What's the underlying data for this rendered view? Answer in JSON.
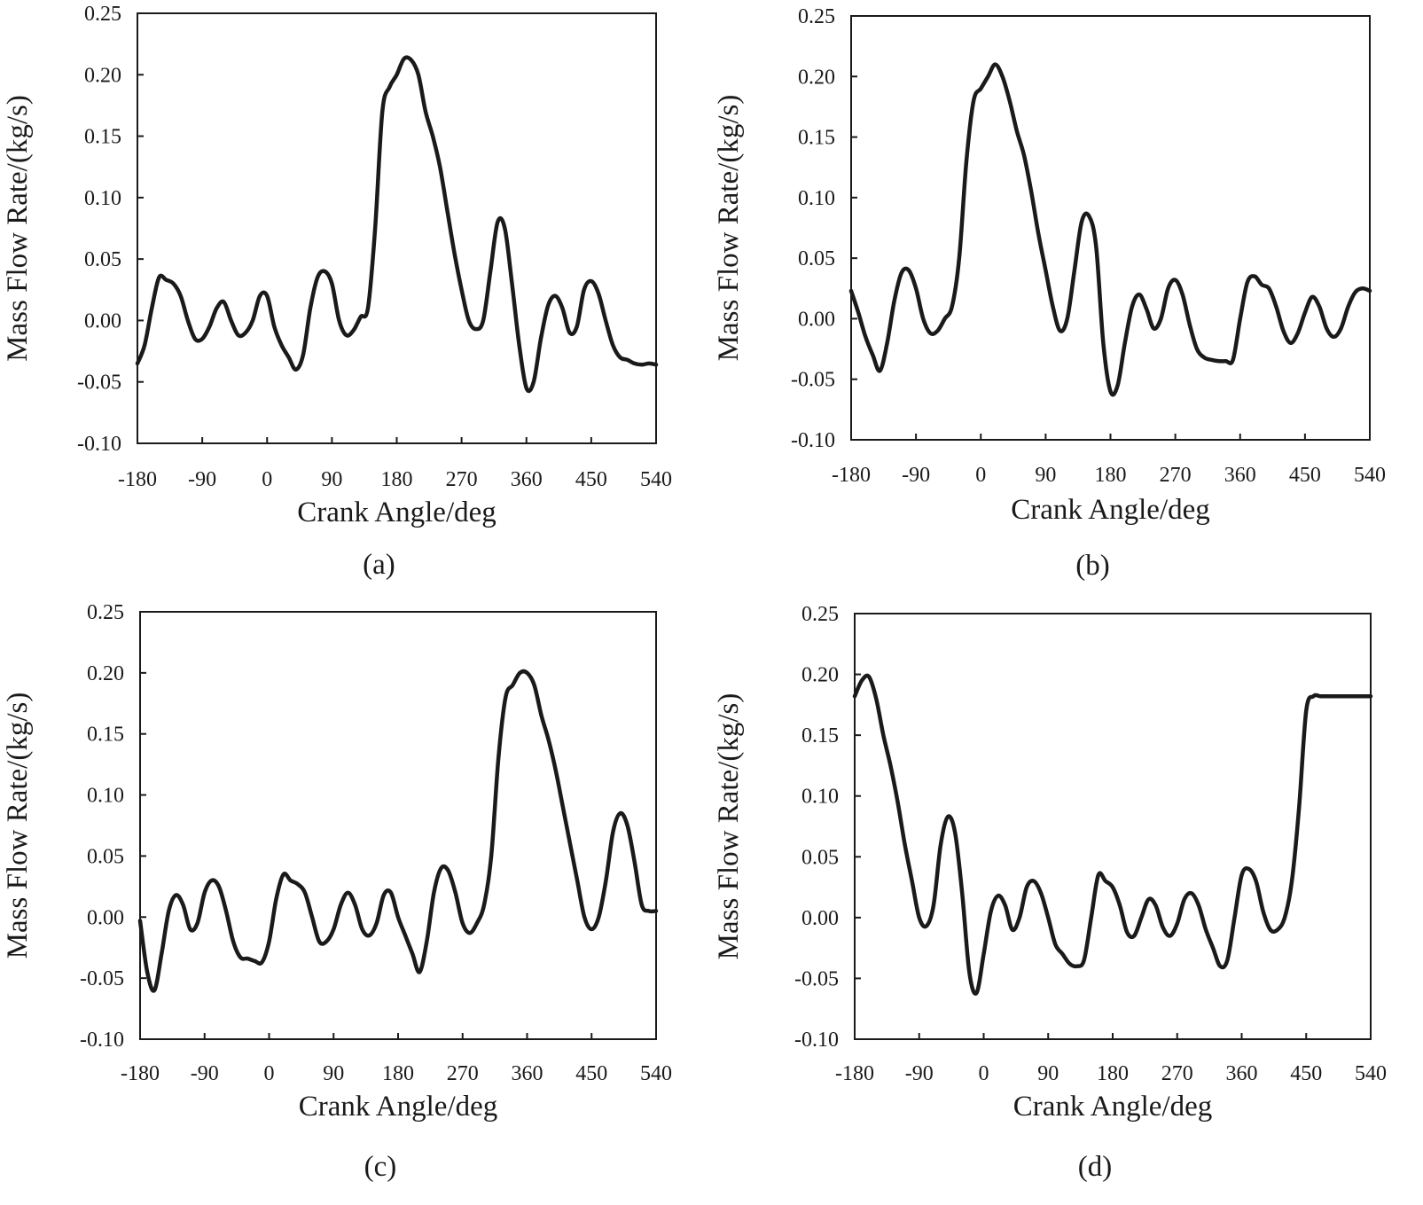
{
  "figure": {
    "background": "#ffffff",
    "line_color": "#1a1a1a"
  },
  "chart_data": [
    {
      "panel": "a",
      "type": "line",
      "caption": "(a)",
      "xlabel": "Crank Angle/deg",
      "ylabel": "Mass Flow Rate/(kg/s)",
      "xlim": [
        -180,
        540
      ],
      "ylim": [
        -0.1,
        0.25
      ],
      "xticks": [
        -180,
        -90,
        0,
        90,
        180,
        270,
        360,
        450,
        540
      ],
      "xtick_labels": [
        "-180",
        "-90",
        "0",
        "90",
        "180",
        "270",
        "360",
        "450",
        "540"
      ],
      "yticks": [
        -0.1,
        -0.05,
        0.0,
        0.05,
        0.1,
        0.15,
        0.2,
        0.25
      ],
      "ytick_labels": [
        "-0.10",
        "-0.05",
        "0.00",
        "0.05",
        "0.10",
        "0.15",
        "0.20",
        "0.25"
      ],
      "grid": false,
      "series": [
        {
          "name": "mass flow rate",
          "x": [
            -180,
            -170,
            -160,
            -150,
            -140,
            -130,
            -120,
            -110,
            -100,
            -90,
            -80,
            -70,
            -60,
            -50,
            -40,
            -30,
            -20,
            -10,
            0,
            10,
            20,
            30,
            40,
            50,
            60,
            70,
            80,
            90,
            100,
            110,
            120,
            130,
            140,
            150,
            160,
            170,
            180,
            190,
            200,
            210,
            220,
            230,
            240,
            250,
            260,
            270,
            280,
            290,
            300,
            310,
            320,
            330,
            340,
            350,
            360,
            370,
            380,
            390,
            400,
            410,
            420,
            430,
            440,
            450,
            460,
            470,
            480,
            490,
            500,
            510,
            520,
            530,
            540
          ],
          "y": [
            -0.035,
            -0.02,
            0.01,
            0.035,
            0.033,
            0.03,
            0.02,
            0.0,
            -0.015,
            -0.015,
            -0.005,
            0.01,
            0.015,
            0.0,
            -0.012,
            -0.01,
            0.0,
            0.02,
            0.02,
            -0.005,
            -0.02,
            -0.03,
            -0.04,
            -0.028,
            0.01,
            0.035,
            0.04,
            0.03,
            0.0,
            -0.012,
            -0.008,
            0.003,
            0.01,
            0.075,
            0.17,
            0.19,
            0.2,
            0.213,
            0.212,
            0.2,
            0.17,
            0.15,
            0.125,
            0.09,
            0.055,
            0.025,
            0.0,
            -0.007,
            0.0,
            0.04,
            0.08,
            0.075,
            0.03,
            -0.02,
            -0.055,
            -0.05,
            -0.015,
            0.012,
            0.02,
            0.01,
            -0.01,
            -0.005,
            0.025,
            0.032,
            0.022,
            0.0,
            -0.02,
            -0.03,
            -0.032,
            -0.035,
            -0.036,
            -0.035,
            -0.036
          ]
        }
      ]
    },
    {
      "panel": "b",
      "type": "line",
      "caption": "(b)",
      "xlabel": "Crank Angle/deg",
      "ylabel": "Mass Flow Rate/(kg/s)",
      "xlim": [
        -180,
        540
      ],
      "ylim": [
        -0.1,
        0.25
      ],
      "xticks": [
        -180,
        -90,
        0,
        90,
        180,
        270,
        360,
        450,
        540
      ],
      "xtick_labels": [
        "-180",
        "-90",
        "0",
        "90",
        "180",
        "270",
        "360",
        "450",
        "540"
      ],
      "yticks": [
        -0.1,
        -0.05,
        0.0,
        0.05,
        0.1,
        0.15,
        0.2,
        0.25
      ],
      "ytick_labels": [
        "-0.10",
        "-0.05",
        "0.00",
        "0.05",
        "0.10",
        "0.15",
        "0.20",
        "0.25"
      ],
      "grid": false,
      "series": [
        {
          "name": "mass flow rate",
          "x": [
            -180,
            -170,
            -160,
            -150,
            -140,
            -130,
            -120,
            -110,
            -100,
            -90,
            -80,
            -70,
            -60,
            -50,
            -40,
            -30,
            -20,
            -10,
            0,
            10,
            20,
            30,
            40,
            50,
            60,
            70,
            80,
            90,
            100,
            110,
            120,
            130,
            140,
            150,
            160,
            170,
            180,
            190,
            200,
            210,
            220,
            230,
            240,
            250,
            260,
            270,
            280,
            290,
            300,
            310,
            320,
            330,
            340,
            350,
            360,
            370,
            380,
            390,
            400,
            410,
            420,
            430,
            440,
            450,
            460,
            470,
            480,
            490,
            500,
            510,
            520,
            530,
            540
          ],
          "y": [
            0.023,
            0.005,
            -0.015,
            -0.03,
            -0.043,
            -0.02,
            0.015,
            0.038,
            0.04,
            0.025,
            0.0,
            -0.012,
            -0.01,
            0.0,
            0.01,
            0.05,
            0.13,
            0.18,
            0.19,
            0.2,
            0.21,
            0.2,
            0.18,
            0.155,
            0.135,
            0.105,
            0.07,
            0.04,
            0.01,
            -0.01,
            0.0,
            0.04,
            0.08,
            0.085,
            0.06,
            -0.02,
            -0.06,
            -0.055,
            -0.02,
            0.01,
            0.02,
            0.008,
            -0.008,
            0.0,
            0.025,
            0.032,
            0.02,
            -0.005,
            -0.025,
            -0.032,
            -0.034,
            -0.035,
            -0.035,
            -0.034,
            0.0,
            0.03,
            0.035,
            0.028,
            0.025,
            0.01,
            -0.01,
            -0.02,
            -0.012,
            0.005,
            0.018,
            0.01,
            -0.008,
            -0.015,
            -0.008,
            0.01,
            0.022,
            0.025,
            0.023
          ]
        }
      ]
    },
    {
      "panel": "c",
      "type": "line",
      "caption": "(c)",
      "xlabel": "Crank Angle/deg",
      "ylabel": "Mass Flow Rate/(kg/s)",
      "xlim": [
        -180,
        540
      ],
      "ylim": [
        -0.1,
        0.25
      ],
      "xticks": [
        -180,
        -90,
        0,
        90,
        180,
        270,
        360,
        450,
        540
      ],
      "xtick_labels": [
        "-180",
        "-90",
        "0",
        "90",
        "180",
        "270",
        "360",
        "450",
        "540"
      ],
      "yticks": [
        -0.1,
        -0.05,
        0.0,
        0.05,
        0.1,
        0.15,
        0.2,
        0.25
      ],
      "ytick_labels": [
        "-0.10",
        "-0.05",
        "0.00",
        "0.05",
        "0.10",
        "0.15",
        "0.20",
        "0.25"
      ],
      "grid": false,
      "series": [
        {
          "name": "mass flow rate",
          "x": [
            -180,
            -170,
            -160,
            -150,
            -140,
            -130,
            -120,
            -110,
            -100,
            -90,
            -80,
            -70,
            -60,
            -50,
            -40,
            -30,
            -20,
            -10,
            0,
            10,
            20,
            30,
            40,
            50,
            60,
            70,
            80,
            90,
            100,
            110,
            120,
            130,
            140,
            150,
            160,
            170,
            180,
            190,
            200,
            210,
            220,
            230,
            240,
            250,
            260,
            270,
            280,
            290,
            300,
            310,
            320,
            330,
            340,
            350,
            360,
            370,
            380,
            390,
            400,
            410,
            420,
            430,
            440,
            450,
            460,
            470,
            480,
            490,
            500,
            510,
            520,
            530,
            540
          ],
          "y": [
            -0.003,
            -0.045,
            -0.06,
            -0.03,
            0.005,
            0.018,
            0.01,
            -0.01,
            -0.005,
            0.02,
            0.03,
            0.025,
            0.005,
            -0.02,
            -0.033,
            -0.034,
            -0.036,
            -0.037,
            -0.02,
            0.015,
            0.035,
            0.03,
            0.027,
            0.02,
            0.0,
            -0.02,
            -0.02,
            -0.01,
            0.01,
            0.02,
            0.01,
            -0.01,
            -0.015,
            -0.005,
            0.018,
            0.02,
            0.0,
            -0.015,
            -0.03,
            -0.045,
            -0.02,
            0.02,
            0.04,
            0.038,
            0.02,
            -0.005,
            -0.013,
            -0.005,
            0.01,
            0.05,
            0.13,
            0.18,
            0.19,
            0.2,
            0.2,
            0.19,
            0.165,
            0.145,
            0.12,
            0.09,
            0.06,
            0.03,
            0.0,
            -0.01,
            0.0,
            0.03,
            0.07,
            0.085,
            0.075,
            0.045,
            0.01,
            0.005,
            0.005
          ]
        }
      ]
    },
    {
      "panel": "d",
      "type": "line",
      "caption": "(d)",
      "xlabel": "Crank Angle/deg",
      "ylabel": "Mass Flow Rate/(kg/s)",
      "xlim": [
        -180,
        540
      ],
      "ylim": [
        -0.1,
        0.25
      ],
      "xticks": [
        -180,
        -90,
        0,
        90,
        180,
        270,
        360,
        450,
        540
      ],
      "xtick_labels": [
        "-180",
        "-90",
        "0",
        "90",
        "180",
        "270",
        "360",
        "450",
        "540"
      ],
      "yticks": [
        -0.1,
        -0.05,
        0.0,
        0.05,
        0.1,
        0.15,
        0.2,
        0.25
      ],
      "ytick_labels": [
        "-0.10",
        "-0.05",
        "0.00",
        "0.05",
        "0.10",
        "0.15",
        "0.20",
        "0.25"
      ],
      "grid": false,
      "series": [
        {
          "name": "mass flow rate",
          "x": [
            -180,
            -170,
            -160,
            -150,
            -140,
            -130,
            -120,
            -110,
            -100,
            -90,
            -80,
            -70,
            -60,
            -50,
            -40,
            -30,
            -20,
            -10,
            0,
            10,
            20,
            30,
            40,
            50,
            60,
            70,
            80,
            90,
            100,
            110,
            120,
            130,
            140,
            150,
            160,
            170,
            180,
            190,
            200,
            210,
            220,
            230,
            240,
            250,
            260,
            270,
            280,
            290,
            300,
            310,
            320,
            330,
            340,
            350,
            360,
            370,
            380,
            390,
            400,
            410,
            420,
            430,
            440,
            450,
            460,
            470,
            480,
            490,
            500,
            510,
            520,
            530,
            540
          ],
          "y": [
            0.182,
            0.195,
            0.198,
            0.18,
            0.15,
            0.125,
            0.095,
            0.06,
            0.03,
            0.0,
            -0.007,
            0.01,
            0.06,
            0.083,
            0.07,
            0.02,
            -0.045,
            -0.062,
            -0.03,
            0.005,
            0.018,
            0.01,
            -0.01,
            0.0,
            0.025,
            0.03,
            0.02,
            0.0,
            -0.022,
            -0.03,
            -0.038,
            -0.04,
            -0.035,
            0.0,
            0.035,
            0.03,
            0.025,
            0.01,
            -0.012,
            -0.015,
            0.0,
            0.015,
            0.01,
            -0.008,
            -0.015,
            -0.005,
            0.015,
            0.02,
            0.01,
            -0.01,
            -0.025,
            -0.04,
            -0.035,
            0.0,
            0.035,
            0.04,
            0.03,
            0.005,
            -0.01,
            -0.01,
            0.0,
            0.03,
            0.09,
            0.17,
            0.182,
            0.182,
            0.182,
            0.182,
            0.182,
            0.182,
            0.182,
            0.182,
            0.182
          ]
        }
      ]
    }
  ]
}
